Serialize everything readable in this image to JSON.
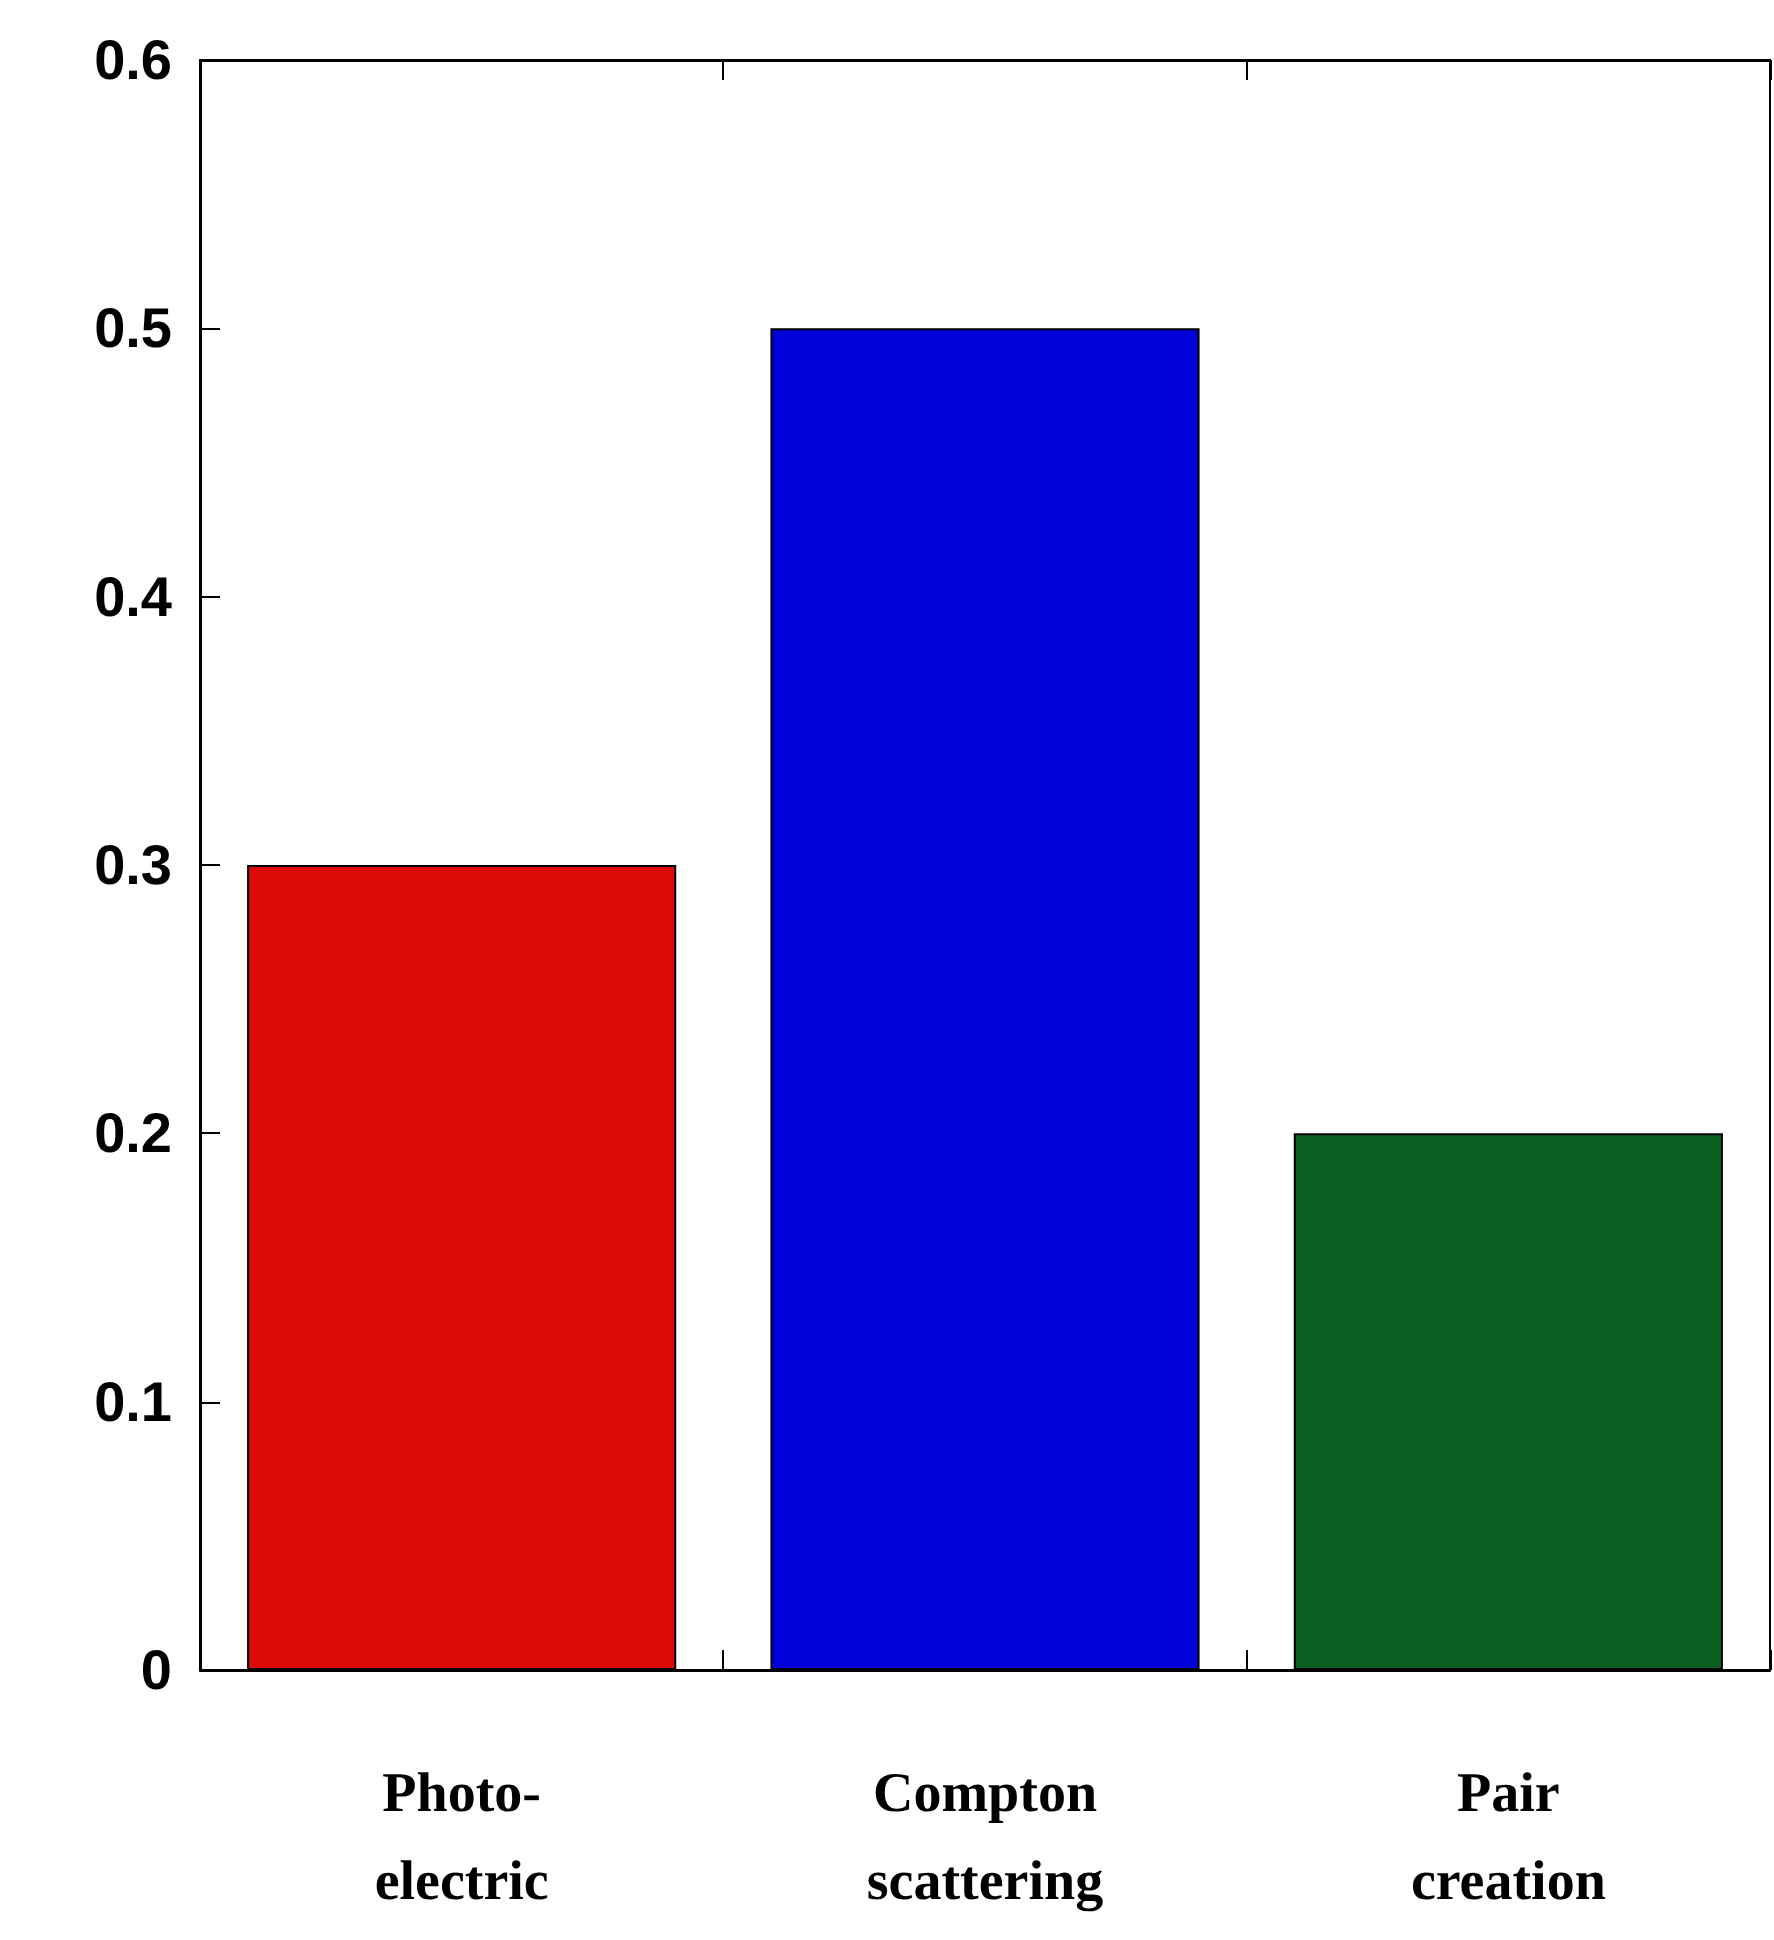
{
  "chart_data": {
    "type": "bar",
    "categories": [
      "Photo-\nelectric",
      "Compton\nscattering",
      "Pair\ncreation"
    ],
    "values": [
      0.3,
      0.5,
      0.2
    ],
    "colors": [
      "#dd0a0a",
      "#0000d8",
      "#0a6020"
    ],
    "ylim": [
      0,
      0.6
    ],
    "yticks": [
      0,
      0.1,
      0.2,
      0.3,
      0.4,
      0.5,
      0.6
    ],
    "grid": false
  }
}
